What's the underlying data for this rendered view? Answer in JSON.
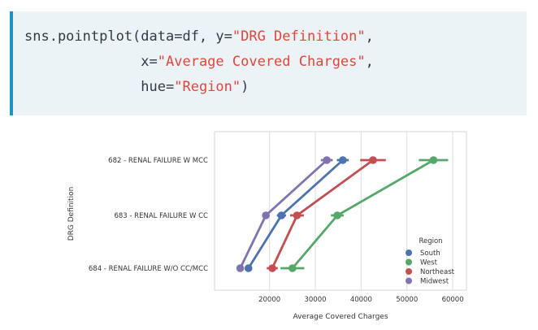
{
  "code": {
    "line1": {
      "pre": "sns.pointplot(data=df, y=",
      "str": "\"DRG Definition\"",
      "post": ","
    },
    "line2": {
      "pre": "              x=",
      "str": "\"Average Covered Charges\"",
      "post": ","
    },
    "line3": {
      "pre": "              hue=",
      "str": "\"Region\"",
      "post": ")"
    }
  },
  "chart_data": {
    "type": "line",
    "xlabel": "Average Covered Charges",
    "ylabel": "DRG Definition",
    "xlim": [
      8000,
      63000
    ],
    "xticks": [
      20000,
      30000,
      40000,
      50000,
      60000
    ],
    "categories": [
      "682 - RENAL FAILURE W MCC",
      "683 - RENAL FAILURE W CC",
      "684 - RENAL FAILURE W/O CC/MCC"
    ],
    "grid": true,
    "legend_title": "Region",
    "legend_position": "bottom-right",
    "series": [
      {
        "name": "South",
        "color": "#4c72b0",
        "values": [
          36000,
          22600,
          15400
        ],
        "err": [
          1300,
          1000,
          800
        ]
      },
      {
        "name": "West",
        "color": "#55a868",
        "values": [
          55800,
          34800,
          25000
        ],
        "err": [
          3200,
          1400,
          2600
        ]
      },
      {
        "name": "Northeast",
        "color": "#c44e52",
        "values": [
          42600,
          26000,
          20600
        ],
        "err": [
          2800,
          1500,
          1200
        ]
      },
      {
        "name": "Midwest",
        "color": "#8172b2",
        "values": [
          32500,
          19200,
          13600
        ],
        "err": [
          1300,
          700,
          500
        ]
      }
    ]
  }
}
